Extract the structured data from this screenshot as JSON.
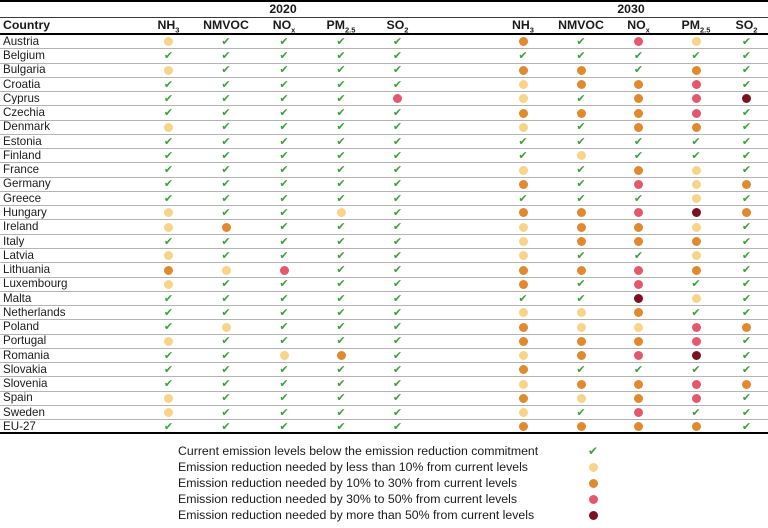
{
  "chart_data": {
    "type": "table",
    "country_header": "Country",
    "year_groups": [
      "2020",
      "2030"
    ],
    "pollutants": [
      {
        "base": "NH",
        "sub": "3"
      },
      {
        "base": "NMVOC",
        "sub": ""
      },
      {
        "base": "NO",
        "sub": "x"
      },
      {
        "base": "PM",
        "sub": "2.5"
      },
      {
        "base": "SO",
        "sub": "2"
      }
    ],
    "rows": [
      {
        "country": "Austria",
        "y2020": [
          "lt10",
          "ok",
          "ok",
          "ok",
          "ok"
        ],
        "y2030": [
          "r10_30",
          "ok",
          "r30_50",
          "lt10",
          "ok"
        ]
      },
      {
        "country": "Belgium",
        "y2020": [
          "ok",
          "ok",
          "ok",
          "ok",
          "ok"
        ],
        "y2030": [
          "ok",
          "ok",
          "ok",
          "ok",
          "ok"
        ]
      },
      {
        "country": "Bulgaria",
        "y2020": [
          "lt10",
          "ok",
          "ok",
          "ok",
          "ok"
        ],
        "y2030": [
          "r10_30",
          "r10_30",
          "ok",
          "r10_30",
          "ok"
        ]
      },
      {
        "country": "Croatia",
        "y2020": [
          "ok",
          "ok",
          "ok",
          "ok",
          "ok"
        ],
        "y2030": [
          "lt10",
          "r10_30",
          "r10_30",
          "r30_50",
          "ok"
        ]
      },
      {
        "country": "Cyprus",
        "y2020": [
          "ok",
          "ok",
          "ok",
          "ok",
          "r30_50"
        ],
        "y2030": [
          "lt10",
          "ok",
          "r10_30",
          "r30_50",
          "gt50"
        ]
      },
      {
        "country": "Czechia",
        "y2020": [
          "ok",
          "ok",
          "ok",
          "ok",
          "ok"
        ],
        "y2030": [
          "r10_30",
          "r10_30",
          "r10_30",
          "r30_50",
          "ok"
        ]
      },
      {
        "country": "Denmark",
        "y2020": [
          "lt10",
          "ok",
          "ok",
          "ok",
          "ok"
        ],
        "y2030": [
          "lt10",
          "ok",
          "r10_30",
          "r10_30",
          "ok"
        ]
      },
      {
        "country": "Estonia",
        "y2020": [
          "ok",
          "ok",
          "ok",
          "ok",
          "ok"
        ],
        "y2030": [
          "ok",
          "ok",
          "ok",
          "ok",
          "ok"
        ]
      },
      {
        "country": "Finland",
        "y2020": [
          "ok",
          "ok",
          "ok",
          "ok",
          "ok"
        ],
        "y2030": [
          "ok",
          "lt10",
          "ok",
          "ok",
          "ok"
        ]
      },
      {
        "country": "France",
        "y2020": [
          "ok",
          "ok",
          "ok",
          "ok",
          "ok"
        ],
        "y2030": [
          "lt10",
          "ok",
          "r10_30",
          "lt10",
          "ok"
        ]
      },
      {
        "country": "Germany",
        "y2020": [
          "ok",
          "ok",
          "ok",
          "ok",
          "ok"
        ],
        "y2030": [
          "r10_30",
          "ok",
          "r30_50",
          "lt10",
          "r10_30"
        ]
      },
      {
        "country": "Greece",
        "y2020": [
          "ok",
          "ok",
          "ok",
          "ok",
          "ok"
        ],
        "y2030": [
          "ok",
          "ok",
          "ok",
          "lt10",
          "ok"
        ]
      },
      {
        "country": "Hungary",
        "y2020": [
          "lt10",
          "ok",
          "ok",
          "lt10",
          "ok"
        ],
        "y2030": [
          "r10_30",
          "r10_30",
          "r30_50",
          "gt50",
          "r10_30"
        ]
      },
      {
        "country": "Ireland",
        "y2020": [
          "lt10",
          "r10_30",
          "ok",
          "ok",
          "ok"
        ],
        "y2030": [
          "lt10",
          "r10_30",
          "r10_30",
          "lt10",
          "ok"
        ]
      },
      {
        "country": "Italy",
        "y2020": [
          "ok",
          "ok",
          "ok",
          "ok",
          "ok"
        ],
        "y2030": [
          "lt10",
          "r10_30",
          "r10_30",
          "r10_30",
          "ok"
        ]
      },
      {
        "country": "Latvia",
        "y2020": [
          "lt10",
          "ok",
          "ok",
          "ok",
          "ok"
        ],
        "y2030": [
          "lt10",
          "ok",
          "ok",
          "lt10",
          "ok"
        ]
      },
      {
        "country": "Lithuania",
        "y2020": [
          "r10_30",
          "lt10",
          "r30_50",
          "ok",
          "ok"
        ],
        "y2030": [
          "r10_30",
          "r10_30",
          "r30_50",
          "r10_30",
          "ok"
        ]
      },
      {
        "country": "Luxembourg",
        "y2020": [
          "lt10",
          "ok",
          "ok",
          "ok",
          "ok"
        ],
        "y2030": [
          "r10_30",
          "ok",
          "r30_50",
          "ok",
          "ok"
        ]
      },
      {
        "country": "Malta",
        "y2020": [
          "ok",
          "ok",
          "ok",
          "ok",
          "ok"
        ],
        "y2030": [
          "ok",
          "ok",
          "gt50",
          "lt10",
          "ok"
        ]
      },
      {
        "country": "Netherlands",
        "y2020": [
          "ok",
          "ok",
          "ok",
          "ok",
          "ok"
        ],
        "y2030": [
          "lt10",
          "lt10",
          "r10_30",
          "ok",
          "ok"
        ]
      },
      {
        "country": "Poland",
        "y2020": [
          "ok",
          "lt10",
          "ok",
          "ok",
          "ok"
        ],
        "y2030": [
          "r10_30",
          "lt10",
          "lt10",
          "r30_50",
          "r10_30"
        ]
      },
      {
        "country": "Portugal",
        "y2020": [
          "lt10",
          "ok",
          "ok",
          "ok",
          "ok"
        ],
        "y2030": [
          "r10_30",
          "r10_30",
          "r10_30",
          "r30_50",
          "ok"
        ]
      },
      {
        "country": "Romania",
        "y2020": [
          "ok",
          "ok",
          "lt10",
          "r10_30",
          "ok"
        ],
        "y2030": [
          "lt10",
          "r10_30",
          "r30_50",
          "gt50",
          "ok"
        ]
      },
      {
        "country": "Slovakia",
        "y2020": [
          "ok",
          "ok",
          "ok",
          "ok",
          "ok"
        ],
        "y2030": [
          "r10_30",
          "ok",
          "ok",
          "ok",
          "ok"
        ]
      },
      {
        "country": "Slovenia",
        "y2020": [
          "ok",
          "ok",
          "ok",
          "ok",
          "ok"
        ],
        "y2030": [
          "lt10",
          "r10_30",
          "r10_30",
          "r30_50",
          "r10_30"
        ]
      },
      {
        "country": "Spain",
        "y2020": [
          "lt10",
          "ok",
          "ok",
          "ok",
          "ok"
        ],
        "y2030": [
          "r10_30",
          "lt10",
          "r10_30",
          "r30_50",
          "ok"
        ]
      },
      {
        "country": "Sweden",
        "y2020": [
          "lt10",
          "ok",
          "ok",
          "ok",
          "ok"
        ],
        "y2030": [
          "lt10",
          "ok",
          "r30_50",
          "ok",
          "ok"
        ]
      },
      {
        "country": "EU-27",
        "y2020": [
          "ok",
          "ok",
          "ok",
          "ok",
          "ok"
        ],
        "y2030": [
          "r10_30",
          "r10_30",
          "r10_30",
          "r10_30",
          "ok"
        ]
      }
    ],
    "legend": [
      {
        "symbol": "ok",
        "label": "Current emission levels below the emission reduction commitment"
      },
      {
        "symbol": "lt10",
        "label": "Emission reduction needed by less than 10% from current levels"
      },
      {
        "symbol": "r10_30",
        "label": "Emission reduction needed by 10% to 30% from current levels"
      },
      {
        "symbol": "r30_50",
        "label": "Emission reduction needed by 30% to 50% from current levels"
      },
      {
        "symbol": "gt50",
        "label": "Emission reduction needed by more than 50% from current levels"
      }
    ]
  },
  "symbols": {
    "check_glyph": "✔"
  },
  "colors": {
    "ok": "#3d9f3d",
    "lt10": "#f7d488",
    "r10_30": "#e0892f",
    "r30_50": "#e4586d",
    "gt50": "#7d1124"
  }
}
